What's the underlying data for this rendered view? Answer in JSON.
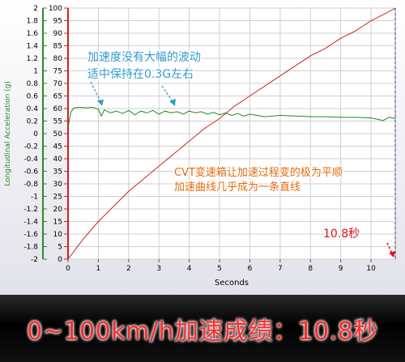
{
  "chart_data": {
    "type": "line",
    "xlabel": "Seconds",
    "ylabel_left": "Longitudinal Acceleration (g)",
    "xlim": [
      0,
      10.8
    ],
    "ylim_left": [
      -2,
      2
    ],
    "ylim_right": [
      0,
      100
    ],
    "x_ticks": [
      0,
      1,
      2,
      3,
      4,
      5,
      6,
      7,
      8,
      9,
      10
    ],
    "y_left_ticks": [
      2,
      1.8,
      1.6,
      1.4,
      1.2,
      1,
      0.8,
      0.6,
      0.4,
      0.2,
      0,
      -0.2,
      -0.4,
      -0.6,
      -0.8,
      -1,
      -1.2,
      -1.4,
      -1.6,
      -1.8,
      -2
    ],
    "y_right_ticks": [
      100,
      95,
      90,
      85,
      80,
      75,
      70,
      65,
      60,
      55,
      50,
      45,
      40,
      35,
      30,
      25,
      20,
      15,
      10,
      5,
      0
    ],
    "series": [
      {
        "axis": "right",
        "color": "#cc2222",
        "x": [
          0,
          0.5,
          1,
          1.5,
          2,
          2.5,
          3,
          3.5,
          4,
          4.5,
          5,
          5.5,
          6,
          6.5,
          7,
          7.5,
          8,
          8.5,
          9,
          9.5,
          10,
          10.5,
          10.8
        ],
        "values": [
          0,
          8,
          15,
          21,
          27,
          32,
          37,
          42,
          47,
          52,
          56,
          61,
          65,
          69,
          73,
          77,
          81,
          84,
          88,
          91,
          95,
          98,
          100
        ]
      },
      {
        "axis": "left",
        "color": "#228822",
        "x": [
          0,
          0.1,
          0.2,
          0.4,
          0.6,
          0.8,
          1.0,
          1.1,
          1.2,
          1.4,
          1.6,
          1.8,
          2.0,
          2.2,
          2.4,
          2.6,
          2.8,
          3.0,
          3.2,
          3.4,
          3.6,
          3.8,
          4.0,
          4.2,
          4.4,
          4.6,
          4.8,
          5.0,
          5.2,
          5.4,
          5.6,
          5.8,
          6.0,
          6.5,
          7.0,
          7.5,
          8.0,
          8.5,
          9.0,
          9.5,
          10.0,
          10.4,
          10.6,
          10.8
        ],
        "values": [
          0.1,
          0.35,
          0.41,
          0.42,
          0.41,
          0.42,
          0.39,
          0.28,
          0.38,
          0.33,
          0.36,
          0.32,
          0.37,
          0.3,
          0.36,
          0.33,
          0.37,
          0.31,
          0.36,
          0.33,
          0.35,
          0.31,
          0.36,
          0.33,
          0.35,
          0.31,
          0.34,
          0.3,
          0.33,
          0.29,
          0.32,
          0.28,
          0.31,
          0.27,
          0.29,
          0.28,
          0.27,
          0.27,
          0.26,
          0.26,
          0.25,
          0.21,
          0.26,
          0.24
        ]
      }
    ],
    "end_value_label": "10.8秒",
    "annotations": [
      {
        "color": "#3399cc",
        "lines": [
          "加速度没有大幅的波动",
          "适中保持在0.3G左右"
        ]
      },
      {
        "color": "#e06a10",
        "lines": [
          "CVT变速箱让加速过程变的极为平顺",
          "加速曲线几乎成为一条直线"
        ]
      }
    ]
  },
  "banner": {
    "text": "0~100km/h加速成绩：10.8秒"
  }
}
